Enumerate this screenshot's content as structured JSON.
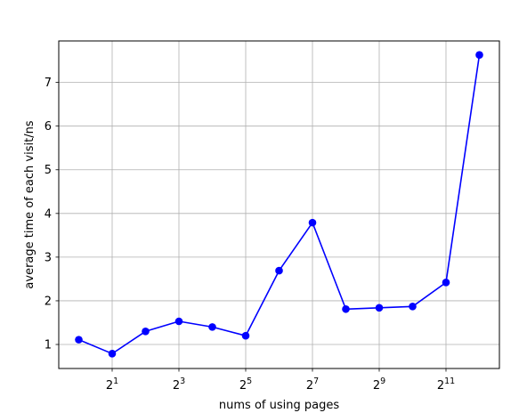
{
  "chart_data": {
    "type": "line",
    "xlabel": "nums of using pages",
    "ylabel": "average time of each visit/ns",
    "x_scale": "log2",
    "x_ticks": [
      {
        "base": "2",
        "exp": "1",
        "value": 2
      },
      {
        "base": "2",
        "exp": "3",
        "value": 8
      },
      {
        "base": "2",
        "exp": "5",
        "value": 32
      },
      {
        "base": "2",
        "exp": "7",
        "value": 128
      },
      {
        "base": "2",
        "exp": "9",
        "value": 512
      },
      {
        "base": "2",
        "exp": "11",
        "value": 2048
      }
    ],
    "y_ticks": [
      "1",
      "2",
      "3",
      "4",
      "5",
      "6",
      "7"
    ],
    "y_tick_values": [
      1,
      2,
      3,
      4,
      5,
      6,
      7
    ],
    "xlim_log2": [
      -0.6,
      12.6
    ],
    "ylim": [
      0.45,
      7.95
    ],
    "grid": true,
    "color": "#0000ff",
    "series": [
      {
        "x": [
          1,
          2,
          4,
          8,
          16,
          32,
          64,
          128,
          256,
          512,
          1024,
          2048,
          4096
        ],
        "y": [
          1.11,
          0.79,
          1.3,
          1.53,
          1.4,
          1.2,
          2.69,
          3.79,
          1.81,
          1.84,
          1.87,
          2.42,
          7.63
        ]
      }
    ]
  }
}
